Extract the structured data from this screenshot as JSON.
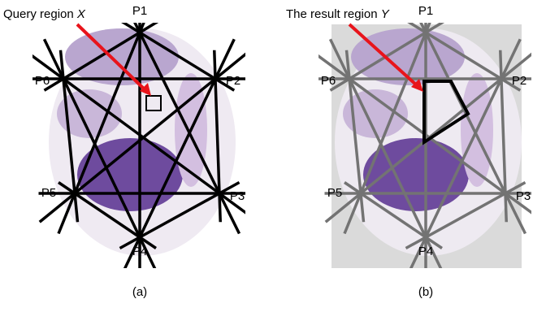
{
  "panels": [
    {
      "caption": "(a)",
      "annotation": {
        "text": "Query region",
        "variable": "X"
      },
      "points": [
        "P1",
        "P2",
        "P3",
        "P4",
        "P5",
        "P6"
      ]
    },
    {
      "caption": "(b)",
      "annotation": {
        "text": "The result region",
        "variable": "Y"
      },
      "points": [
        "P1",
        "P2",
        "P3",
        "P4",
        "P5",
        "P6"
      ]
    }
  ]
}
